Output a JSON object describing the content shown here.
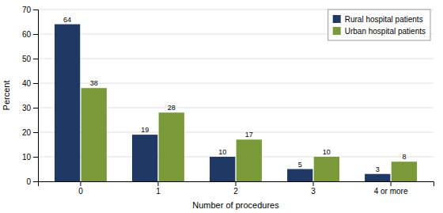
{
  "chart_data": {
    "type": "bar",
    "categories": [
      "0",
      "1",
      "2",
      "3",
      "4 or more"
    ],
    "series": [
      {
        "name": "Rural hospital patients",
        "color": "#1F3864",
        "values": [
          64,
          19,
          10,
          5,
          3
        ]
      },
      {
        "name": "Urban hospital patients",
        "color": "#7A9A3A",
        "values": [
          38,
          28,
          17,
          10,
          8
        ]
      }
    ],
    "xlabel": "Number of procedures",
    "ylabel": "Percent",
    "ylim": [
      0,
      70
    ],
    "yticks": [
      0,
      10,
      20,
      30,
      40,
      50,
      60,
      70
    ],
    "grid": true,
    "legend": "top-right",
    "data_labels": true
  }
}
